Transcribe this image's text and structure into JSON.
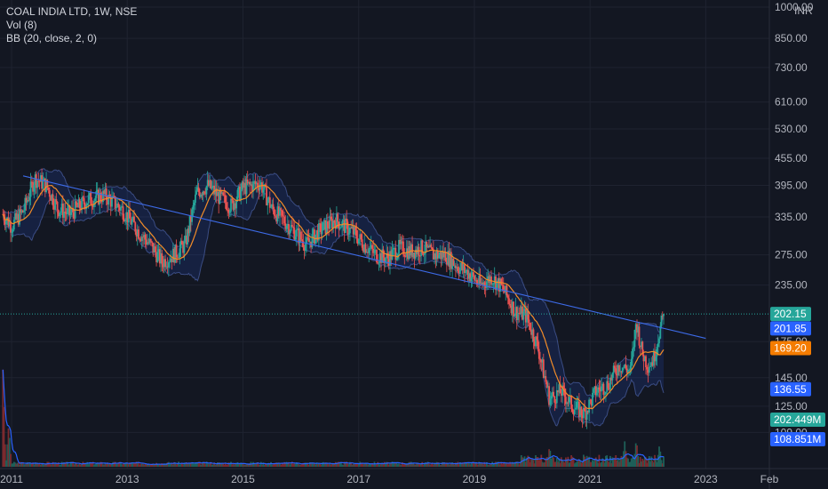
{
  "legend": {
    "symbol": "COAL INDIA LTD, 1W, NSE",
    "volume": "Vol (8)",
    "bollinger": "BB (20, close, 2, 0)"
  },
  "currency": "INR",
  "chart_data": {
    "type": "candlestick",
    "price_scale": "log",
    "ylim": [
      100,
      1000
    ],
    "xlim": [
      2010.8,
      2024.1
    ],
    "y_ticks": [
      {
        "value": 1000,
        "label": "1000.00"
      },
      {
        "value": 850,
        "label": "850.00"
      },
      {
        "value": 730,
        "label": "730.00"
      },
      {
        "value": 610,
        "label": "610.00"
      },
      {
        "value": 530,
        "label": "530.00"
      },
      {
        "value": 455,
        "label": "455.00"
      },
      {
        "value": 395,
        "label": "395.00"
      },
      {
        "value": 335,
        "label": "335.00"
      },
      {
        "value": 275,
        "label": "275.00"
      },
      {
        "value": 235,
        "label": "235.00"
      },
      {
        "value": 175,
        "label": "175.00"
      },
      {
        "value": 145,
        "label": "145.00"
      },
      {
        "value": 125,
        "label": "125.00"
      },
      {
        "value": 109,
        "label": "109.00"
      }
    ],
    "x_ticks": [
      {
        "value": 2011.0,
        "label": "2011"
      },
      {
        "value": 2013.0,
        "label": "2013"
      },
      {
        "value": 2015.0,
        "label": "2015"
      },
      {
        "value": 2017.0,
        "label": "2017"
      },
      {
        "value": 2019.0,
        "label": "2019"
      },
      {
        "value": 2021.0,
        "label": "2021"
      },
      {
        "value": 2023.0,
        "label": "2023"
      },
      {
        "value": 2024.1,
        "label": "Feb"
      }
    ],
    "price_path": [
      [
        2010.85,
        340
      ],
      [
        2011.0,
        320
      ],
      [
        2011.2,
        345
      ],
      [
        2011.4,
        410
      ],
      [
        2011.6,
        395
      ],
      [
        2011.8,
        350
      ],
      [
        2012.0,
        340
      ],
      [
        2012.3,
        365
      ],
      [
        2012.6,
        375
      ],
      [
        2012.9,
        350
      ],
      [
        2013.2,
        310
      ],
      [
        2013.4,
        290
      ],
      [
        2013.6,
        265
      ],
      [
        2013.8,
        275
      ],
      [
        2014.0,
        290
      ],
      [
        2014.2,
        380
      ],
      [
        2014.4,
        395
      ],
      [
        2014.6,
        370
      ],
      [
        2014.8,
        355
      ],
      [
        2015.0,
        390
      ],
      [
        2015.3,
        400
      ],
      [
        2015.5,
        350
      ],
      [
        2015.7,
        330
      ],
      [
        2015.9,
        310
      ],
      [
        2016.1,
        290
      ],
      [
        2016.3,
        310
      ],
      [
        2016.6,
        330
      ],
      [
        2016.9,
        310
      ],
      [
        2017.1,
        290
      ],
      [
        2017.3,
        275
      ],
      [
        2017.5,
        270
      ],
      [
        2017.7,
        285
      ],
      [
        2017.9,
        280
      ],
      [
        2018.1,
        285
      ],
      [
        2018.3,
        275
      ],
      [
        2018.5,
        275
      ],
      [
        2018.7,
        260
      ],
      [
        2018.9,
        250
      ],
      [
        2019.1,
        235
      ],
      [
        2019.3,
        245
      ],
      [
        2019.5,
        230
      ],
      [
        2019.7,
        205
      ],
      [
        2019.9,
        200
      ],
      [
        2020.1,
        170
      ],
      [
        2020.3,
        130
      ],
      [
        2020.5,
        135
      ],
      [
        2020.7,
        125
      ],
      [
        2020.9,
        120
      ],
      [
        2021.1,
        135
      ],
      [
        2021.3,
        140
      ],
      [
        2021.5,
        155
      ],
      [
        2021.7,
        150
      ],
      [
        2021.8,
        195
      ],
      [
        2021.9,
        165
      ],
      [
        2022.0,
        155
      ],
      [
        2022.1,
        160
      ],
      [
        2022.2,
        185
      ],
      [
        2022.28,
        202.15
      ]
    ],
    "trendline": [
      [
        2011.2,
        415
      ],
      [
        2023.0,
        178
      ]
    ],
    "volume_ylim": [
      0,
      500
    ],
    "volume_events": [
      [
        2010.85,
        420
      ],
      [
        2010.95,
        180
      ],
      [
        2020.3,
        90
      ],
      [
        2021.6,
        110
      ],
      [
        2021.8,
        120
      ],
      [
        2022.2,
        95
      ]
    ],
    "last_price": {
      "value": 202.15,
      "label": "202.15"
    },
    "bb_upper": {
      "value": 201.85,
      "label": "201.85"
    },
    "bb_basis": {
      "value": 169.2,
      "label": "169.20"
    },
    "bb_lower": {
      "value": 136.55,
      "label": "136.55"
    },
    "volume_last": {
      "label": "202.449M"
    },
    "volume_ma": {
      "label": "108.851M"
    }
  }
}
